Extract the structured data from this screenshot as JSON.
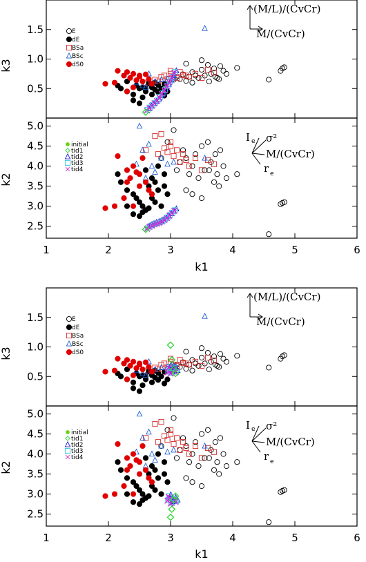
{
  "chart_data": [
    {
      "type": "scatter",
      "title": "",
      "panels": [
        {
          "name": "top",
          "ylabel": "k3",
          "xlim": [
            1,
            6
          ],
          "ylim": [
            0,
            2
          ],
          "yticks": [
            "0.5",
            "1.0",
            "1.5"
          ],
          "ytick_values": [
            0.5,
            1.0,
            1.5
          ],
          "legend": [
            "E",
            "dE",
            "BSa",
            "BSc",
            "dS0"
          ],
          "arrow_labels": [
            "(M/L)/(CvCr)",
            "M/(CvCr)"
          ]
        },
        {
          "name": "bottom",
          "ylabel": "k2",
          "xlabel": "k1",
          "xlim": [
            1,
            6
          ],
          "ylim": [
            2.2,
            5.2
          ],
          "xticks": [
            "1",
            "2",
            "3",
            "4",
            "5",
            "6"
          ],
          "xtick_values": [
            1,
            2,
            3,
            4,
            5,
            6
          ],
          "yticks": [
            "2.5",
            "3.0",
            "3.5",
            "4.0",
            "4.5",
            "5.0"
          ],
          "ytick_values": [
            2.5,
            3.0,
            3.5,
            4.0,
            4.5,
            5.0
          ],
          "legend": [
            "initial",
            "tid1",
            "tid2",
            "tid3",
            "tid4"
          ],
          "arrow_labels": [
            "I",
            "σ²",
            "M/(CvCr)",
            "r",
            "e"
          ]
        }
      ],
      "series": [
        {
          "name": "E",
          "marker": "open-circle",
          "color": "#000000",
          "k1": [
            2.85,
            2.95,
            3.05,
            3.1,
            3.15,
            3.2,
            3.25,
            3.3,
            3.35,
            3.4,
            3.45,
            3.5,
            3.55,
            3.6,
            3.65,
            3.7,
            3.75,
            3.8,
            3.85,
            3.25,
            3.35,
            3.5,
            3.62,
            3.72,
            3.78,
            3.9,
            4.07,
            4.58,
            4.77,
            4.8,
            4.83
          ],
          "k3": [
            0.58,
            0.62,
            0.65,
            0.7,
            0.66,
            0.74,
            0.63,
            0.7,
            0.78,
            0.72,
            0.68,
            0.82,
            0.72,
            0.9,
            0.75,
            0.84,
            0.68,
            0.88,
            0.8,
            0.92,
            0.6,
            0.98,
            0.62,
            0.7,
            0.66,
            0.75,
            0.85,
            0.65,
            0.8,
            0.84,
            0.86
          ],
          "k2": [
            4.2,
            4.6,
            4.9,
            3.9,
            4.1,
            4.4,
            4.2,
            3.8,
            4.0,
            4.3,
            3.7,
            4.5,
            3.9,
            4.6,
            4.1,
            3.6,
            3.8,
            4.4,
            4.0,
            3.4,
            3.3,
            3.2,
            3.9,
            4.3,
            3.5,
            3.7,
            3.8,
            2.3,
            3.05,
            3.08,
            3.1
          ]
        },
        {
          "name": "dE",
          "marker": "filled-circle",
          "color": "#000000",
          "k1": [
            2.15,
            2.2,
            2.3,
            2.4,
            2.45,
            2.5,
            2.55,
            2.6,
            2.65,
            2.7,
            2.75,
            2.8,
            2.85,
            2.9,
            2.95,
            2.3,
            2.4,
            2.5,
            2.6,
            2.7,
            2.8,
            2.9,
            2.65,
            2.75,
            2.55
          ],
          "k3": [
            0.55,
            0.5,
            0.45,
            0.4,
            0.55,
            0.5,
            0.35,
            0.45,
            0.6,
            0.52,
            0.48,
            0.56,
            0.5,
            0.58,
            0.45,
            0.62,
            0.3,
            0.25,
            0.5,
            0.4,
            0.44,
            0.38,
            0.58,
            0.6,
            0.52
          ],
          "k2": [
            3.8,
            3.6,
            3.4,
            3.3,
            3.2,
            3.1,
            3.0,
            2.9,
            3.5,
            3.2,
            3.6,
            3.4,
            3.0,
            3.8,
            3.3,
            3.0,
            2.8,
            2.75,
            3.9,
            3.7,
            4.0,
            3.5,
            2.95,
            3.1,
            2.85
          ]
        },
        {
          "name": "BSa",
          "marker": "open-square",
          "color": "#d62a2a",
          "k1": [
            2.6,
            2.75,
            2.85,
            2.9,
            2.95,
            3.0,
            3.05,
            3.1,
            3.15,
            3.2,
            3.3,
            3.4,
            3.5,
            3.6,
            3.7,
            2.8,
            3.0,
            3.25
          ],
          "k3": [
            0.6,
            0.65,
            0.7,
            0.72,
            0.66,
            0.75,
            0.7,
            0.68,
            0.78,
            0.73,
            0.7,
            0.75,
            0.68,
            0.82,
            0.77,
            0.62,
            0.8,
            0.72
          ],
          "k2": [
            4.4,
            4.75,
            4.8,
            4.45,
            4.35,
            4.6,
            4.25,
            4.4,
            4.1,
            4.3,
            4.0,
            4.2,
            3.9,
            4.15,
            4.05,
            4.3,
            4.5,
            4.15
          ]
        },
        {
          "name": "BSc",
          "marker": "open-triangle",
          "color": "#1c5fd6",
          "k1": [
            2.45,
            2.55,
            2.6,
            2.65,
            2.7,
            2.75,
            2.85,
            2.95,
            3.05,
            3.55,
            2.5
          ],
          "k3": [
            0.6,
            0.55,
            0.52,
            0.75,
            0.58,
            0.62,
            0.65,
            0.66,
            0.68,
            1.52,
            0.7
          ],
          "k2": [
            4.05,
            4.4,
            3.7,
            4.55,
            4.0,
            3.85,
            4.2,
            4.05,
            4.1,
            4.2,
            5.0
          ]
        },
        {
          "name": "dS0",
          "marker": "filled-circle",
          "color": "#e00000",
          "k1": [
            1.95,
            2.1,
            2.15,
            2.25,
            2.3,
            2.35,
            2.4,
            2.45,
            2.5,
            2.55,
            2.6,
            2.65,
            2.7,
            2.3,
            2.4,
            2.5
          ],
          "k3": [
            0.58,
            0.6,
            0.8,
            0.72,
            0.78,
            0.68,
            0.75,
            0.64,
            0.72,
            0.62,
            0.74,
            0.66,
            0.58,
            0.45,
            0.52,
            0.7
          ],
          "k2": [
            2.95,
            3.0,
            4.25,
            3.2,
            3.9,
            3.7,
            3.0,
            3.85,
            3.5,
            4.2,
            3.6,
            3.4,
            3.3,
            3.6,
            4.0,
            3.8
          ]
        }
      ],
      "sim_top": {
        "initial_tid1": {
          "k1": [
            2.6
          ],
          "k3": [
            0.1
          ],
          "k2": [
            2.42
          ]
        },
        "tracks": {
          "k1": [
            2.62,
            2.66,
            2.7,
            2.74,
            2.78,
            2.82,
            2.86,
            2.9,
            2.94,
            2.98,
            3.02,
            3.06
          ],
          "k3": [
            0.14,
            0.18,
            0.22,
            0.26,
            0.3,
            0.36,
            0.42,
            0.48,
            0.55,
            0.62,
            0.7,
            0.78
          ],
          "k2": [
            2.45,
            2.5,
            2.53,
            2.56,
            2.58,
            2.6,
            2.63,
            2.67,
            2.72,
            2.78,
            2.84,
            2.9
          ]
        }
      },
      "sim_bottom": {
        "tid1": {
          "k1": [
            3.0,
            3.02,
            3.05,
            3.08
          ],
          "k3": [
            1.03,
            0.78,
            0.62,
            0.55
          ],
          "k2": [
            2.42,
            2.62,
            2.85,
            2.95
          ]
        },
        "tracks": {
          "k1": [
            2.95,
            2.98,
            3.02,
            3.05,
            3.08,
            2.97,
            3.0
          ],
          "k3": [
            0.58,
            0.6,
            0.62,
            0.64,
            0.58,
            0.66,
            0.56
          ],
          "k2": [
            2.85,
            2.9,
            2.8,
            2.88,
            2.82,
            2.95,
            2.78
          ]
        }
      }
    }
  ],
  "colors": {
    "initial": "#6ad018",
    "tid1": "#2ed62e",
    "tid2": "#1a1adf",
    "tid3": "#2ec9e0",
    "tid4": "#d62ed6"
  }
}
